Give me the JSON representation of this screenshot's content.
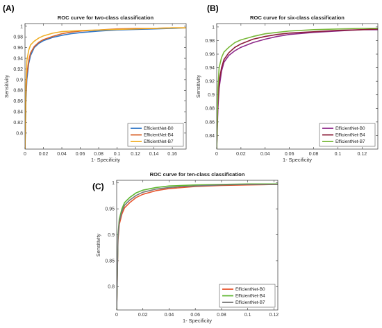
{
  "chart_data": [
    {
      "panel": "(A)",
      "type": "line",
      "title": "ROC curve for two-class classification",
      "xlabel": "1- Specificity",
      "ylabel": "Sensitivity",
      "xlim": [
        0,
        0.175
      ],
      "ylim": [
        0.77,
        1.005
      ],
      "xticks": [
        0,
        0.02,
        0.04,
        0.06,
        0.08,
        0.1,
        0.12,
        0.14,
        0.16
      ],
      "xtick_labels": [
        "0",
        "0.02",
        "0.04",
        "0.06",
        "0.08",
        "0.1",
        "0.12",
        "0.14",
        "0.16"
      ],
      "yticks": [
        0.8,
        0.82,
        0.84,
        0.86,
        0.88,
        0.9,
        0.92,
        0.94,
        0.96,
        0.98,
        1
      ],
      "ytick_labels": [
        "0.8",
        "0.82",
        "0.84",
        "0.86",
        "0.88",
        "0.9",
        "0.92",
        "0.94",
        "0.96",
        "0.98",
        "1"
      ],
      "legend_position": "bottom-right",
      "series": [
        {
          "name": "EfficientNet-B0",
          "color": "#2e75c6",
          "x": [
            0,
            0.001,
            0.002,
            0.004,
            0.006,
            0.01,
            0.015,
            0.02,
            0.03,
            0.04,
            0.05,
            0.06,
            0.08,
            0.1,
            0.12,
            0.14,
            0.16,
            0.175
          ],
          "y": [
            0.77,
            0.86,
            0.9,
            0.93,
            0.945,
            0.96,
            0.968,
            0.973,
            0.979,
            0.983,
            0.986,
            0.988,
            0.991,
            0.993,
            0.994,
            0.995,
            0.996,
            0.997
          ]
        },
        {
          "name": "EfficientNet-B4",
          "color": "#d9632a",
          "x": [
            0,
            0.001,
            0.002,
            0.004,
            0.006,
            0.01,
            0.015,
            0.02,
            0.03,
            0.04,
            0.05,
            0.06,
            0.08,
            0.1,
            0.12,
            0.14,
            0.16,
            0.175
          ],
          "y": [
            0.77,
            0.87,
            0.91,
            0.935,
            0.95,
            0.962,
            0.97,
            0.975,
            0.981,
            0.986,
            0.989,
            0.991,
            0.993,
            0.995,
            0.996,
            0.996,
            0.997,
            0.997
          ]
        },
        {
          "name": "EfficientNet-B7",
          "color": "#f0b02a",
          "x": [
            0,
            0.001,
            0.002,
            0.004,
            0.006,
            0.01,
            0.015,
            0.02,
            0.03,
            0.04,
            0.05,
            0.06,
            0.08,
            0.1,
            0.12,
            0.14,
            0.16,
            0.175
          ],
          "y": [
            0.77,
            0.89,
            0.935,
            0.955,
            0.965,
            0.972,
            0.978,
            0.982,
            0.987,
            0.99,
            0.991,
            0.992,
            0.993,
            0.994,
            0.995,
            0.996,
            0.997,
            0.997
          ]
        }
      ]
    },
    {
      "panel": "(B)",
      "type": "line",
      "title": "ROC curve for six-class classification",
      "xlabel": "1- Specificity",
      "ylabel": "Sensitivity",
      "xlim": [
        0,
        0.133
      ],
      "ylim": [
        0.82,
        1.005
      ],
      "xticks": [
        0,
        0.02,
        0.04,
        0.06,
        0.08,
        0.1,
        0.12
      ],
      "xtick_labels": [
        "0",
        "0.02",
        "0.04",
        "0.06",
        "0.08",
        "0.1",
        "0.12"
      ],
      "yticks": [
        0.84,
        0.86,
        0.88,
        0.9,
        0.92,
        0.94,
        0.96,
        0.98,
        1
      ],
      "ytick_labels": [
        "0.84",
        "0.86",
        "0.88",
        "0.9",
        "0.92",
        "0.94",
        "0.96",
        "0.98",
        "1"
      ],
      "legend_position": "bottom-right",
      "series": [
        {
          "name": "EfficientNet-B0",
          "color": "#8e2a8a",
          "x": [
            0,
            0.001,
            0.002,
            0.004,
            0.006,
            0.01,
            0.015,
            0.02,
            0.03,
            0.04,
            0.05,
            0.06,
            0.08,
            0.1,
            0.12,
            0.133
          ],
          "y": [
            0.82,
            0.88,
            0.91,
            0.935,
            0.948,
            0.958,
            0.965,
            0.97,
            0.977,
            0.982,
            0.986,
            0.989,
            0.992,
            0.994,
            0.996,
            0.996
          ]
        },
        {
          "name": "EfficientNet-B4",
          "color": "#8c1d3a",
          "x": [
            0,
            0.001,
            0.002,
            0.004,
            0.006,
            0.01,
            0.015,
            0.02,
            0.03,
            0.04,
            0.05,
            0.06,
            0.08,
            0.1,
            0.12,
            0.133
          ],
          "y": [
            0.82,
            0.89,
            0.92,
            0.94,
            0.952,
            0.962,
            0.97,
            0.975,
            0.982,
            0.986,
            0.989,
            0.991,
            0.993,
            0.995,
            0.996,
            0.997
          ]
        },
        {
          "name": "EfficientNet-B7",
          "color": "#79b83a",
          "x": [
            0,
            0.001,
            0.002,
            0.004,
            0.006,
            0.01,
            0.015,
            0.02,
            0.03,
            0.04,
            0.05,
            0.06,
            0.08,
            0.1,
            0.12,
            0.133
          ],
          "y": [
            0.82,
            0.91,
            0.94,
            0.955,
            0.963,
            0.97,
            0.977,
            0.981,
            0.986,
            0.99,
            0.992,
            0.994,
            0.996,
            0.997,
            0.998,
            0.998
          ]
        }
      ]
    },
    {
      "panel": "(C)",
      "type": "line",
      "title": "ROC curve for ten-class classification",
      "xlabel": "1- Specificity",
      "ylabel": "Sensitivity",
      "xlim": [
        0,
        0.123
      ],
      "ylim": [
        0.755,
        1.005
      ],
      "xticks": [
        0,
        0.02,
        0.04,
        0.06,
        0.08,
        0.1,
        0.12
      ],
      "xtick_labels": [
        "0",
        "0.02",
        "0.04",
        "0.06",
        "0.08",
        "0.1",
        "0.12"
      ],
      "yticks": [
        0.8,
        0.85,
        0.9,
        0.95,
        1
      ],
      "ytick_labels": [
        "0.8",
        "0.85",
        "0.9",
        "0.95",
        "1"
      ],
      "legend_position": "bottom-right",
      "series": [
        {
          "name": "EfficientNet-B0",
          "color": "#e8552e",
          "x": [
            0,
            0.001,
            0.002,
            0.004,
            0.006,
            0.01,
            0.015,
            0.02,
            0.03,
            0.04,
            0.05,
            0.06,
            0.08,
            0.1,
            0.123
          ],
          "y": [
            0.755,
            0.89,
            0.92,
            0.94,
            0.952,
            0.962,
            0.972,
            0.978,
            0.985,
            0.989,
            0.991,
            0.993,
            0.995,
            0.996,
            0.997
          ]
        },
        {
          "name": "EfficientNet-B4",
          "color": "#5fb832",
          "x": [
            0,
            0.001,
            0.002,
            0.004,
            0.006,
            0.01,
            0.015,
            0.02,
            0.03,
            0.04,
            0.05,
            0.06,
            0.08,
            0.1,
            0.123
          ],
          "y": [
            0.755,
            0.9,
            0.93,
            0.95,
            0.962,
            0.972,
            0.981,
            0.986,
            0.991,
            0.994,
            0.995,
            0.996,
            0.997,
            0.998,
            0.998
          ]
        },
        {
          "name": "EfficientNet-B7",
          "color": "#777777",
          "x": [
            0,
            0.001,
            0.002,
            0.004,
            0.006,
            0.01,
            0.015,
            0.02,
            0.03,
            0.04,
            0.05,
            0.06,
            0.08,
            0.1,
            0.123
          ],
          "y": [
            0.755,
            0.895,
            0.925,
            0.945,
            0.957,
            0.967,
            0.976,
            0.982,
            0.988,
            0.991,
            0.993,
            0.994,
            0.996,
            0.997,
            0.997
          ]
        }
      ]
    }
  ]
}
